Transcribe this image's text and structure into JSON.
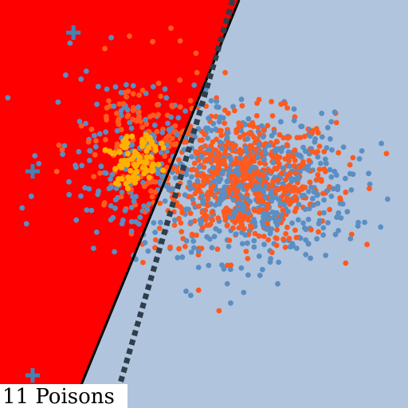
{
  "chart_data": {
    "type": "scatter",
    "title": "",
    "caption": "11 Poisons",
    "xlabel": "",
    "ylabel": "",
    "xlim": [
      0,
      100
    ],
    "ylim": [
      0,
      100
    ],
    "grid": false,
    "legend": "none",
    "colors": {
      "region_positive": "#ff0000",
      "region_negative": "#b0c4de",
      "class_a": "#ff5a1f",
      "class_b": "#5b8ec2",
      "poison": "#ffb000",
      "poison_marker": "#4682b4",
      "boundary_solid": "#000000",
      "boundary_dashed": "#2f3f4a"
    },
    "decision_boundaries": [
      {
        "style": "solid",
        "x1": 58.6,
        "y1": 100,
        "x2": 17.6,
        "y2": 0
      },
      {
        "style": "dashed",
        "x1": 57.0,
        "y1": 100,
        "x2": 27.7,
        "y2": 0
      }
    ],
    "clusters": [
      {
        "name": "",
        "class": "a",
        "count": 650,
        "cx": 60,
        "cy": 56,
        "sx": 11,
        "sy": 8
      },
      {
        "name": "",
        "class": "b",
        "count": 550,
        "cx": 62,
        "cy": 54,
        "sx": 12,
        "sy": 9
      },
      {
        "name": "",
        "class": "a",
        "count": 140,
        "cx": 35,
        "cy": 64,
        "sx": 8,
        "sy": 10
      },
      {
        "name": "",
        "class": "b",
        "count": 170,
        "cx": 32,
        "cy": 62,
        "sx": 10,
        "sy": 11
      }
    ],
    "poison_points": [
      {
        "x": 31,
        "y": 65
      },
      {
        "x": 33,
        "y": 62
      },
      {
        "x": 35,
        "y": 66
      },
      {
        "x": 30,
        "y": 60
      },
      {
        "x": 36,
        "y": 61
      },
      {
        "x": 32,
        "y": 57
      },
      {
        "x": 37,
        "y": 58
      },
      {
        "x": 29,
        "y": 63
      },
      {
        "x": 34,
        "y": 59
      },
      {
        "x": 38,
        "y": 64
      },
      {
        "x": 31,
        "y": 55
      }
    ],
    "plus_markers": [
      {
        "x": 18,
        "y": 92
      },
      {
        "x": 8,
        "y": 58
      },
      {
        "x": 8,
        "y": 8
      }
    ]
  }
}
